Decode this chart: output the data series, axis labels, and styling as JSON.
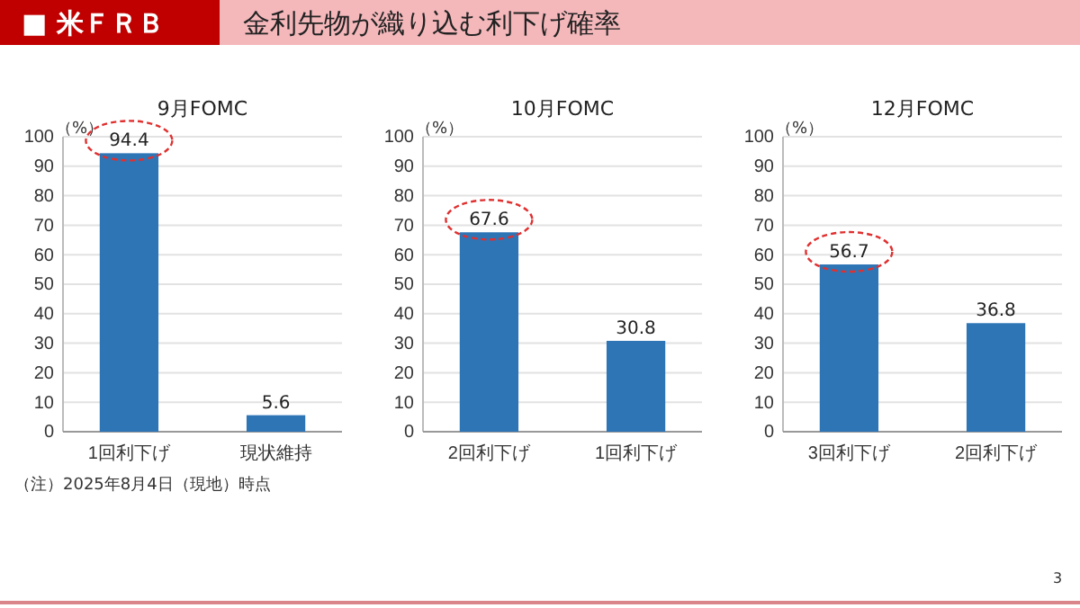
{
  "chart_data": [
    {
      "type": "other",
      "title": "金利先物が織り込む利下げ確率",
      "annotations": [
        "■ 米ＦＲＢ",
        "（注）2025年8月4日（現地）時点",
        "3"
      ]
    },
    {
      "type": "bar",
      "title": "9月FOMC",
      "ylabel": "（%）",
      "categories": [
        "1回利下げ",
        "現状維持"
      ],
      "values": [
        94.4,
        5.6
      ],
      "color": "#2e75b6",
      "ylim": [
        0,
        100
      ],
      "yticks": [
        0,
        10,
        20,
        30,
        40,
        50,
        60,
        70,
        80,
        90,
        100
      ],
      "grid": "y",
      "data_labels": true
    },
    {
      "type": "bar",
      "title": "10月FOMC",
      "ylabel": "（%）",
      "categories": [
        "2回利下げ",
        "1回利下げ"
      ],
      "values": [
        67.6,
        30.8
      ],
      "color": "#2e75b6",
      "ylim": [
        0,
        100
      ],
      "yticks": [
        0,
        10,
        20,
        30,
        40,
        50,
        60,
        70,
        80,
        90,
        100
      ],
      "grid": "y",
      "data_labels": true
    },
    {
      "type": "bar",
      "title": "12月FOMC",
      "ylabel": "（%）",
      "categories": [
        "3回利下げ",
        "2回利下げ"
      ],
      "values": [
        56.7,
        36.8
      ],
      "color": "#2e75b6",
      "ylim": [
        0,
        100
      ],
      "yticks": [
        0,
        10,
        20,
        30,
        40,
        50,
        60,
        70,
        80,
        90,
        100
      ],
      "grid": "y",
      "data_labels": true
    }
  ]
}
